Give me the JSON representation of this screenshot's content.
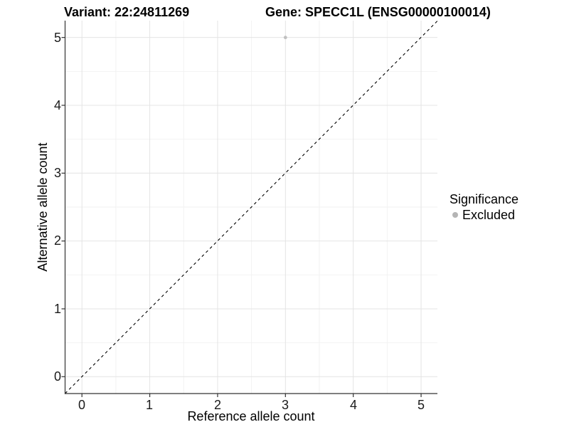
{
  "chart_data": {
    "type": "scatter",
    "titles": {
      "variant": "Variant: 22:24811269",
      "gene": "Gene: SPECC1L (ENSG00000100014)"
    },
    "xlabel": "Reference allele count",
    "ylabel": "Alternative allele count",
    "x_ticks": [
      "0",
      "1",
      "2",
      "3",
      "4",
      "5"
    ],
    "y_ticks": [
      "0",
      "1",
      "2",
      "3",
      "4",
      "5"
    ],
    "xlim": [
      -0.25,
      5.25
    ],
    "ylim": [
      -0.25,
      5.25
    ],
    "grid": "major gridlines at integers, minor gridlines at half-steps, light gray on white",
    "reference_line": {
      "type": "identity y=x",
      "style": "dashed",
      "color": "#000000"
    },
    "points": [
      {
        "x": 3,
        "y": 5,
        "significance": "Excluded"
      }
    ],
    "legend": {
      "title": "Significance",
      "position": "right",
      "items": [
        {
          "label": "Excluded",
          "marker_color": "#bdbdbd"
        }
      ]
    }
  },
  "colors": {
    "point": "#c0c0c0",
    "legend_marker": "#b5b5b5",
    "grid_major": "#e4e4e4",
    "grid_minor": "#f2f2f2",
    "axis": "#333333",
    "reference_line": "#000000",
    "background": "#ffffff",
    "text": "#000000"
  }
}
